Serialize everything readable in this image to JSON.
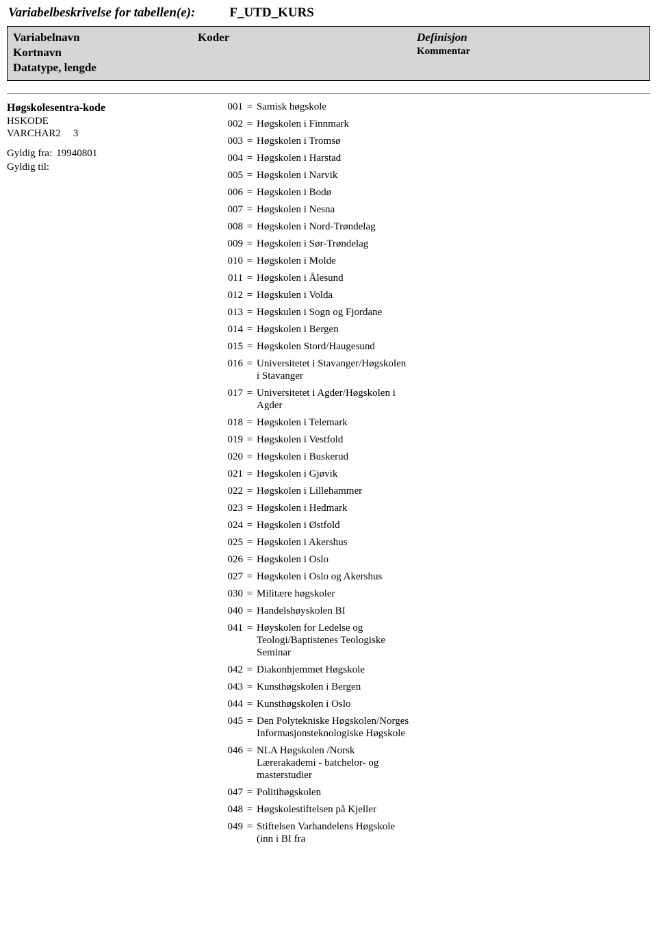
{
  "title_label": "Variabelbeskrivelse for tabellen(e):",
  "title_value": "F_UTD_KURS",
  "header": {
    "variabelnavn": "Variabelnavn",
    "kortnavn": "Kortnavn",
    "datatype": "Datatype, lengde",
    "koder": "Koder",
    "definisjon": "Definisjon",
    "kommentar": "Kommentar"
  },
  "variable": {
    "name": "Høgskolesentra-kode",
    "shortname": "HSKODE",
    "datatype": "VARCHAR2",
    "length": "3",
    "gyldig_fra_label": "Gyldig fra:",
    "gyldig_fra_value": "19940801",
    "gyldig_til_label": "Gyldig til:",
    "gyldig_til_value": ""
  },
  "codes": [
    {
      "k": "001",
      "v": "Samisk høgskole"
    },
    {
      "k": "002",
      "v": "Høgskolen i Finnmark"
    },
    {
      "k": "003",
      "v": "Høgskolen i Tromsø"
    },
    {
      "k": "004",
      "v": "Høgskolen i Harstad"
    },
    {
      "k": "005",
      "v": "Høgskolen i Narvik"
    },
    {
      "k": "006",
      "v": "Høgskolen i Bodø"
    },
    {
      "k": "007",
      "v": "Høgskolen i Nesna"
    },
    {
      "k": "008",
      "v": "Høgskolen i Nord-Trøndelag"
    },
    {
      "k": "009",
      "v": "Høgskolen i Sør-Trøndelag"
    },
    {
      "k": "010",
      "v": "Høgskolen i Molde"
    },
    {
      "k": "011",
      "v": "Høgskolen i Ålesund"
    },
    {
      "k": "012",
      "v": "Høgskulen i Volda"
    },
    {
      "k": "013",
      "v": "Høgskulen i Sogn og Fjordane"
    },
    {
      "k": "014",
      "v": "Høgskolen i Bergen"
    },
    {
      "k": "015",
      "v": "Høgskolen Stord/Haugesund"
    },
    {
      "k": "016",
      "v": "Universitetet i Stavanger/Høgskolen i Stavanger"
    },
    {
      "k": "017",
      "v": "Universitetet i Agder/Høgskolen i Agder"
    },
    {
      "k": "018",
      "v": "Høgskolen i Telemark"
    },
    {
      "k": "019",
      "v": "Høgskolen i Vestfold"
    },
    {
      "k": "020",
      "v": "Høgskolen i Buskerud"
    },
    {
      "k": "021",
      "v": "Høgskolen i Gjøvik"
    },
    {
      "k": "022",
      "v": "Høgskolen i Lillehammer"
    },
    {
      "k": "023",
      "v": "Høgskolen i Hedmark"
    },
    {
      "k": "024",
      "v": "Høgskolen i Østfold"
    },
    {
      "k": "025",
      "v": "Høgskolen i Akershus"
    },
    {
      "k": "026",
      "v": "Høgskolen i Oslo"
    },
    {
      "k": "027",
      "v": "Høgskolen i Oslo og Akershus"
    },
    {
      "k": "030",
      "v": "Militære høgskoler"
    },
    {
      "k": "040",
      "v": "Handelshøyskolen BI"
    },
    {
      "k": "041",
      "v": "Høyskolen for Ledelse og Teologi/Baptistenes Teologiske  Seminar"
    },
    {
      "k": "042",
      "v": "Diakonhjemmet Høgskole"
    },
    {
      "k": "043",
      "v": "Kunsthøgskolen i Bergen"
    },
    {
      "k": "044",
      "v": "Kunsthøgskolen i Oslo"
    },
    {
      "k": "045",
      "v": "Den Polytekniske Høgskolen/Norges Informasjonsteknologiske Høgskole"
    },
    {
      "k": "046",
      "v": "NLA Høgskolen /Norsk Lærerakademi - batchelor- og masterstudier"
    },
    {
      "k": "047",
      "v": "Politihøgskolen"
    },
    {
      "k": "048",
      "v": "Høgskolestiftelsen på Kjeller"
    },
    {
      "k": "049",
      "v": "Stiftelsen Varhandelens Høgskole (inn i BI fra"
    }
  ],
  "eq": "="
}
